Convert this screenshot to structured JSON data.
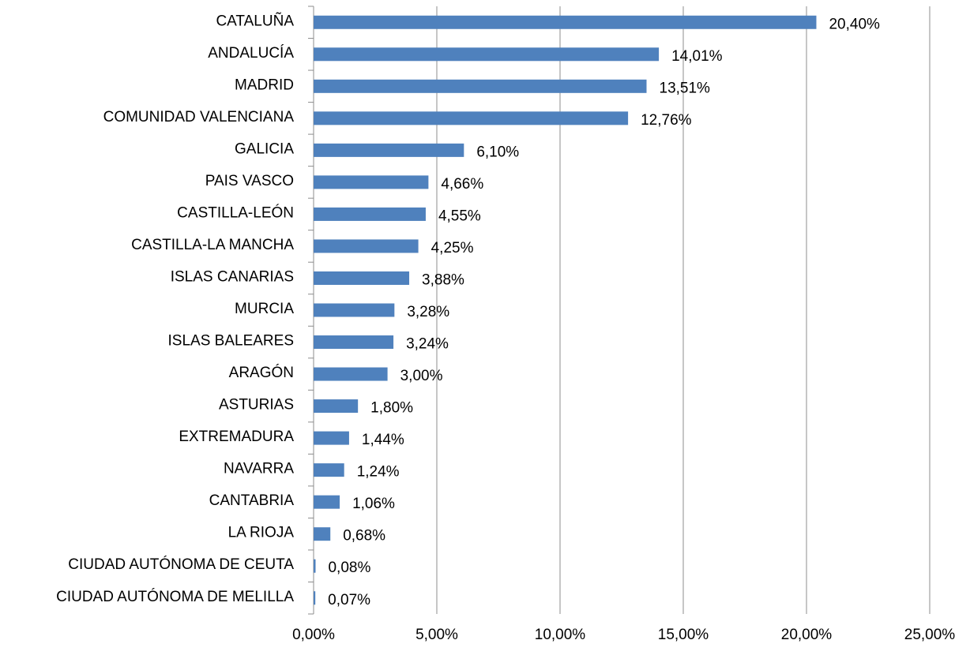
{
  "chart_data": {
    "type": "bar",
    "orientation": "horizontal",
    "categories": [
      "CATALUÑA",
      "ANDALUCÍA",
      "MADRID",
      "COMUNIDAD VALENCIANA",
      "GALICIA",
      "PAIS VASCO",
      "CASTILLA-LEÓN",
      "CASTILLA-LA MANCHA",
      "ISLAS CANARIAS",
      "MURCIA",
      "ISLAS BALEARES",
      "ARAGÓN",
      "ASTURIAS",
      "EXTREMADURA",
      "NAVARRA",
      "CANTABRIA",
      "LA RIOJA",
      "CIUDAD AUTÓNOMA DE CEUTA",
      "CIUDAD AUTÓNOMA DE MELILLA"
    ],
    "values": [
      20.4,
      14.01,
      13.51,
      12.76,
      6.1,
      4.66,
      4.55,
      4.25,
      3.88,
      3.28,
      3.24,
      3.0,
      1.8,
      1.44,
      1.24,
      1.06,
      0.68,
      0.08,
      0.07
    ],
    "value_labels": [
      "20,40%",
      "14,01%",
      "13,51%",
      "12,76%",
      "6,10%",
      "4,66%",
      "4,55%",
      "4,25%",
      "3,88%",
      "3,28%",
      "3,24%",
      "3,00%",
      "1,80%",
      "1,44%",
      "1,24%",
      "1,06%",
      "0,68%",
      "0,08%",
      "0,07%"
    ],
    "color": "#4f81bd",
    "xlim": [
      0,
      25
    ],
    "xticks": [
      {
        "value": 0,
        "label": "0,00%"
      },
      {
        "value": 5,
        "label": "5,00%"
      },
      {
        "value": 10,
        "label": "10,00%"
      },
      {
        "value": 15,
        "label": "15,00%"
      },
      {
        "value": 20,
        "label": "20,00%"
      },
      {
        "value": 25,
        "label": "25,00%"
      }
    ],
    "grid": true
  }
}
